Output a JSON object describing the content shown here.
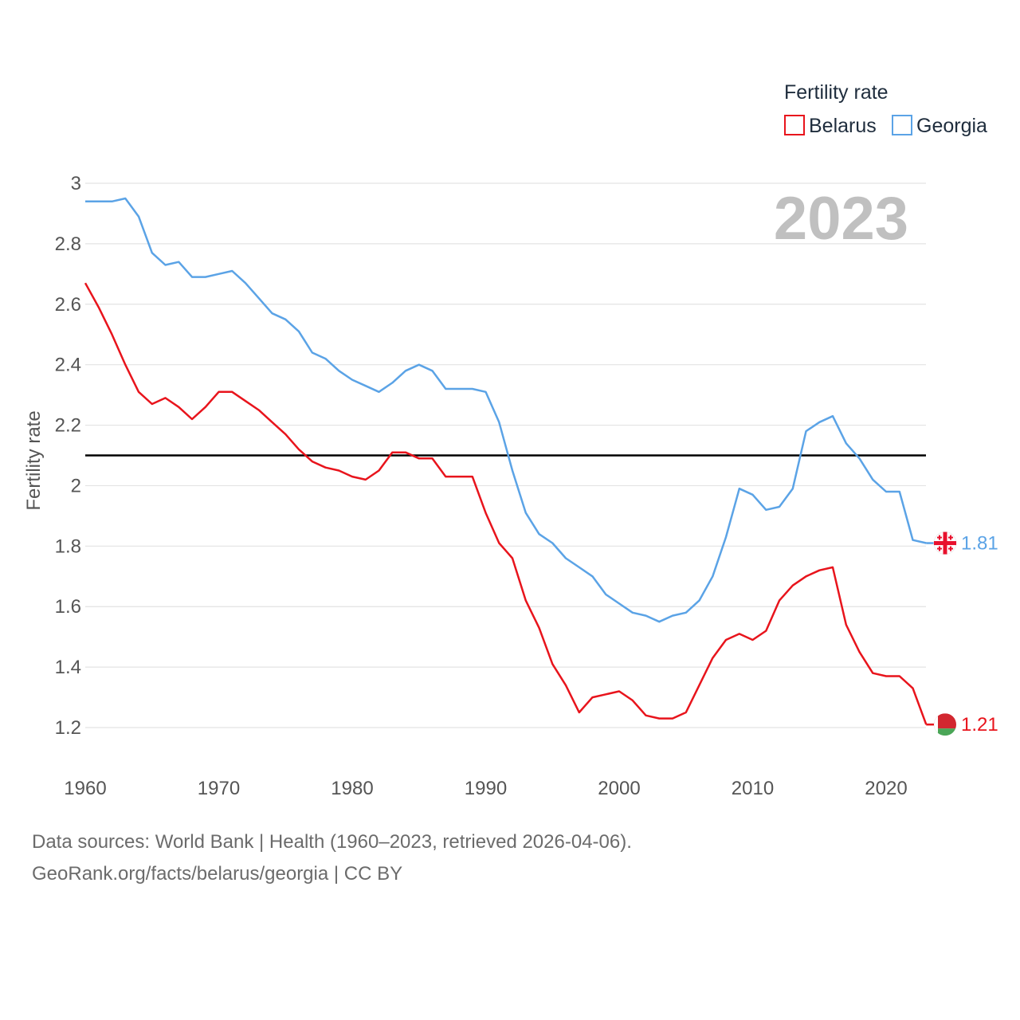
{
  "chart_data": {
    "type": "line",
    "title": "Fertility rate",
    "year_label": "2023",
    "ylabel": "Fertility rate",
    "xlabel": "",
    "xlim": [
      1960,
      2023
    ],
    "ylim": [
      1.1,
      3.0
    ],
    "x_ticks": [
      "1960",
      "1970",
      "1980",
      "1990",
      "2000",
      "2010",
      "2020"
    ],
    "y_ticks": [
      "1.2",
      "1.4",
      "1.6",
      "1.8",
      "2",
      "2.2",
      "2.4",
      "2.6",
      "2.8",
      "3"
    ],
    "reference_line": 2.1,
    "legend_title": "Fertility rate",
    "x": [
      1960,
      1961,
      1962,
      1963,
      1964,
      1965,
      1966,
      1967,
      1968,
      1969,
      1970,
      1971,
      1972,
      1973,
      1974,
      1975,
      1976,
      1977,
      1978,
      1979,
      1980,
      1981,
      1982,
      1983,
      1984,
      1985,
      1986,
      1987,
      1988,
      1989,
      1990,
      1991,
      1992,
      1993,
      1994,
      1995,
      1996,
      1997,
      1998,
      1999,
      2000,
      2001,
      2002,
      2003,
      2004,
      2005,
      2006,
      2007,
      2008,
      2009,
      2010,
      2011,
      2012,
      2013,
      2014,
      2015,
      2016,
      2017,
      2018,
      2019,
      2020,
      2021,
      2022,
      2023
    ],
    "series": [
      {
        "name": "Belarus",
        "color": "#e8141c",
        "end_label": "1.21",
        "values": [
          2.67,
          2.59,
          2.5,
          2.4,
          2.31,
          2.27,
          2.29,
          2.26,
          2.22,
          2.26,
          2.31,
          2.31,
          2.28,
          2.25,
          2.21,
          2.17,
          2.12,
          2.08,
          2.06,
          2.05,
          2.03,
          2.02,
          2.05,
          2.11,
          2.11,
          2.09,
          2.09,
          2.03,
          2.03,
          2.03,
          1.91,
          1.81,
          1.76,
          1.62,
          1.53,
          1.41,
          1.34,
          1.25,
          1.3,
          1.31,
          1.32,
          1.29,
          1.24,
          1.23,
          1.23,
          1.25,
          1.34,
          1.43,
          1.49,
          1.51,
          1.49,
          1.52,
          1.62,
          1.67,
          1.7,
          1.72,
          1.73,
          1.54,
          1.45,
          1.38,
          1.37,
          1.37,
          1.33,
          1.21
        ]
      },
      {
        "name": "Georgia",
        "color": "#5ba3e6",
        "end_label": "1.81",
        "values": [
          2.94,
          2.94,
          2.94,
          2.95,
          2.89,
          2.77,
          2.73,
          2.74,
          2.69,
          2.69,
          2.7,
          2.71,
          2.67,
          2.62,
          2.57,
          2.55,
          2.51,
          2.44,
          2.42,
          2.38,
          2.35,
          2.33,
          2.31,
          2.34,
          2.38,
          2.4,
          2.38,
          2.32,
          2.32,
          2.32,
          2.31,
          2.21,
          2.05,
          1.91,
          1.84,
          1.81,
          1.76,
          1.73,
          1.7,
          1.64,
          1.61,
          1.58,
          1.57,
          1.55,
          1.57,
          1.58,
          1.62,
          1.7,
          1.83,
          1.99,
          1.97,
          1.92,
          1.93,
          1.99,
          2.18,
          2.21,
          2.23,
          2.14,
          2.09,
          2.02,
          1.98,
          1.98,
          1.82,
          1.81
        ]
      }
    ]
  },
  "colors": {
    "grid": "#e3e3e3",
    "reference": "#000000",
    "belarus_flag_red": "#d22730",
    "belarus_flag_green": "#4aa657",
    "georgia_flag_red": "#e8112d"
  },
  "footer": {
    "line1": "Data sources: World Bank | Health (1960–2023, retrieved 2026-04-06).",
    "line2": "GeoRank.org/facts/belarus/georgia | CC BY"
  }
}
